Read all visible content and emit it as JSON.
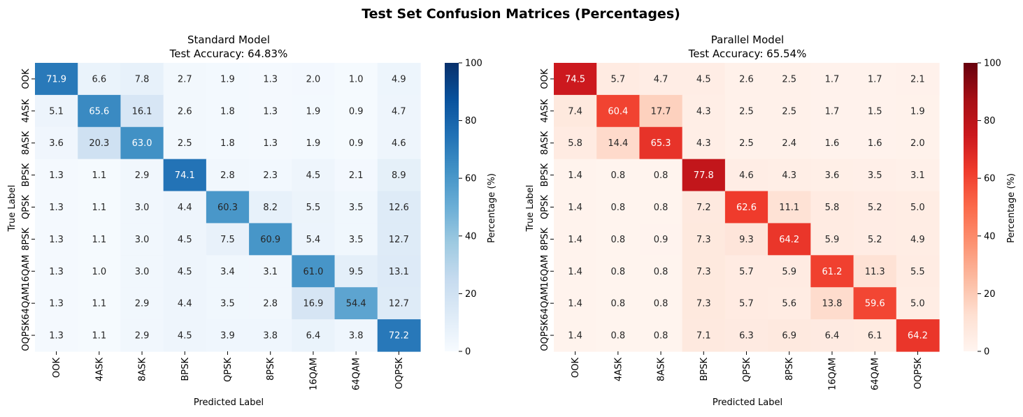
{
  "figure": {
    "suptitle": "Test Set Confusion Matrices (Percentages)"
  },
  "chart_data": [
    {
      "type": "heatmap",
      "title_line1": "Standard Model",
      "title_line2": "Test Accuracy: 64.83%",
      "xlabel": "Predicted Label",
      "ylabel": "True Label",
      "x_categories": [
        "OOK",
        "4ASK",
        "8ASK",
        "BPSK",
        "QPSK",
        "8PSK",
        "16QAM",
        "64QAM",
        "OQPSK"
      ],
      "y_categories": [
        "OOK",
        "4ASK",
        "8ASK",
        "BPSK",
        "QPSK",
        "8PSK",
        "16QAM",
        "64QAM",
        "OQPSK"
      ],
      "values": [
        [
          71.9,
          6.6,
          7.8,
          2.7,
          1.9,
          1.3,
          2.0,
          1.0,
          4.9
        ],
        [
          5.1,
          65.6,
          16.1,
          2.6,
          1.8,
          1.3,
          1.9,
          0.9,
          4.7
        ],
        [
          3.6,
          20.3,
          63.0,
          2.5,
          1.8,
          1.3,
          1.9,
          0.9,
          4.6
        ],
        [
          1.3,
          1.1,
          2.9,
          74.1,
          2.8,
          2.3,
          4.5,
          2.1,
          8.9
        ],
        [
          1.3,
          1.1,
          3.0,
          4.4,
          60.3,
          8.2,
          5.5,
          3.5,
          12.6
        ],
        [
          1.3,
          1.1,
          3.0,
          4.5,
          7.5,
          60.9,
          5.4,
          3.5,
          12.7
        ],
        [
          1.3,
          1.0,
          3.0,
          4.5,
          3.4,
          3.1,
          61.0,
          9.5,
          13.1
        ],
        [
          1.3,
          1.1,
          2.9,
          4.4,
          3.5,
          2.8,
          16.9,
          54.4,
          12.7
        ],
        [
          1.3,
          1.1,
          2.9,
          4.5,
          3.9,
          3.8,
          6.4,
          3.8,
          72.2
        ]
      ],
      "colormap": "Blues",
      "vmin": 0,
      "vmax": 100,
      "colorbar_label": "Percentage (%)",
      "colorbar_ticks": [
        "0",
        "20",
        "40",
        "60",
        "80",
        "100"
      ]
    },
    {
      "type": "heatmap",
      "title_line1": "Parallel Model",
      "title_line2": "Test Accuracy: 65.54%",
      "xlabel": "Predicted Label",
      "ylabel": "True Label",
      "x_categories": [
        "OOK",
        "4ASK",
        "8ASK",
        "BPSK",
        "QPSK",
        "8PSK",
        "16QAM",
        "64QAM",
        "OQPSK"
      ],
      "y_categories": [
        "OOK",
        "4ASK",
        "8ASK",
        "BPSK",
        "QPSK",
        "8PSK",
        "16QAM",
        "64QAM",
        "OQPSK"
      ],
      "values": [
        [
          74.5,
          5.7,
          4.7,
          4.5,
          2.6,
          2.5,
          1.7,
          1.7,
          2.1
        ],
        [
          7.4,
          60.4,
          17.7,
          4.3,
          2.5,
          2.5,
          1.7,
          1.5,
          1.9
        ],
        [
          5.8,
          14.4,
          65.3,
          4.3,
          2.5,
          2.4,
          1.6,
          1.6,
          2.0
        ],
        [
          1.4,
          0.8,
          0.8,
          77.8,
          4.6,
          4.3,
          3.6,
          3.5,
          3.1
        ],
        [
          1.4,
          0.8,
          0.8,
          7.2,
          62.6,
          11.1,
          5.8,
          5.2,
          5.0
        ],
        [
          1.4,
          0.8,
          0.9,
          7.3,
          9.3,
          64.2,
          5.9,
          5.2,
          4.9
        ],
        [
          1.4,
          0.8,
          0.8,
          7.3,
          5.7,
          5.9,
          61.2,
          11.3,
          5.5
        ],
        [
          1.4,
          0.8,
          0.8,
          7.3,
          5.7,
          5.6,
          13.8,
          59.6,
          5.0
        ],
        [
          1.4,
          0.8,
          0.8,
          7.1,
          6.3,
          6.9,
          6.4,
          6.1,
          64.2
        ]
      ],
      "colormap": "Reds",
      "vmin": 0,
      "vmax": 100,
      "colorbar_label": "Percentage (%)",
      "colorbar_ticks": [
        "0",
        "20",
        "40",
        "60",
        "80",
        "100"
      ]
    }
  ]
}
